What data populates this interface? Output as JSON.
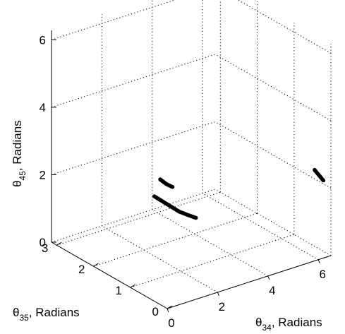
{
  "chart_data": {
    "type": "scatter",
    "projection": "3d",
    "title": "",
    "x_axis": {
      "label_prefix": "θ",
      "label_sub": "34",
      "label_suffix": ", Radians",
      "range": [
        0,
        6.5
      ],
      "ticks": [
        0,
        2,
        4,
        6
      ],
      "tick_labels": [
        "0",
        "2",
        "4",
        "6"
      ]
    },
    "y_axis": {
      "label_prefix": "θ",
      "label_sub": "35",
      "label_suffix": ", Radians",
      "range": [
        0,
        3.14
      ],
      "ticks": [
        0,
        1,
        2,
        3
      ],
      "tick_labels": [
        "0",
        "1",
        "2",
        "3"
      ]
    },
    "z_axis": {
      "label_prefix": "θ",
      "label_sub": "45",
      "label_suffix": ", Radians",
      "range": [
        0,
        6.28
      ],
      "ticks": [
        0,
        2,
        4,
        6
      ],
      "tick_labels": [
        "0",
        "2",
        "4",
        "6"
      ]
    },
    "grid": true,
    "series": [
      {
        "points": [
          [
            3.0,
            2.4,
            1.1
          ],
          [
            3.2,
            2.2,
            0.95
          ],
          [
            3.4,
            2.0,
            0.8
          ],
          [
            3.55,
            1.85,
            0.75
          ],
          [
            3.7,
            1.75,
            0.7
          ]
        ]
      },
      {
        "points": [
          [
            3.45,
            2.55,
            1.4
          ],
          [
            3.55,
            2.45,
            1.3
          ],
          [
            3.65,
            2.35,
            1.25
          ]
        ]
      },
      {
        "points": [
          [
            6.0,
            0.1,
            2.6
          ],
          [
            6.1,
            0.05,
            2.45
          ],
          [
            6.2,
            0.0,
            2.3
          ]
        ]
      }
    ]
  }
}
